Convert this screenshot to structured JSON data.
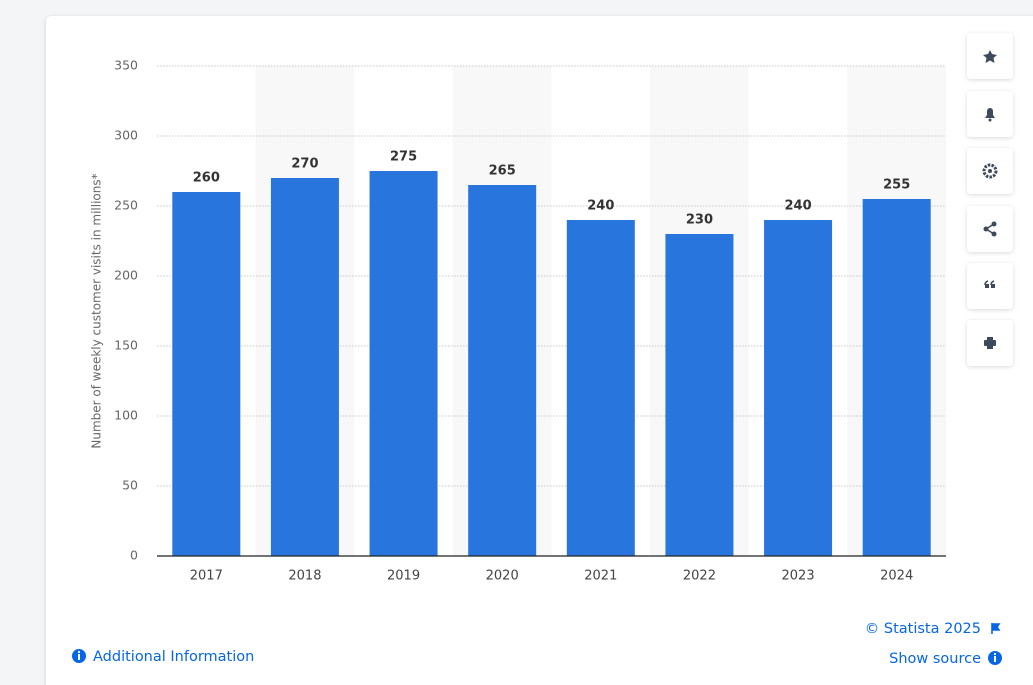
{
  "chart_data": {
    "type": "bar",
    "y_label": "Number of weekly customer visits in millions*",
    "categories": [
      "2017",
      "2018",
      "2019",
      "2020",
      "2021",
      "2022",
      "2023",
      "2024"
    ],
    "values": [
      260,
      270,
      275,
      265,
      240,
      230,
      240,
      255
    ],
    "color": "#2876dd",
    "ylim": [
      0,
      350
    ],
    "yticks": [
      0,
      50,
      100,
      150,
      200,
      250,
      300,
      350
    ],
    "grid": true
  },
  "footer": {
    "copyright": "© Statista 2025",
    "show_source": "Show source",
    "additional_info": "Additional Information"
  }
}
